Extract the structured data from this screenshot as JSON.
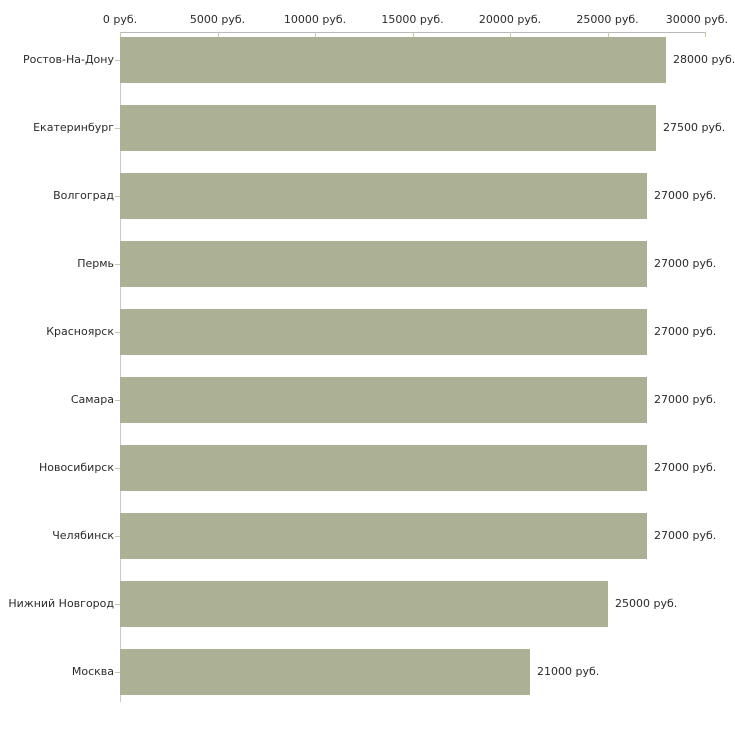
{
  "chart_data": {
    "type": "bar",
    "orientation": "horizontal",
    "title": "",
    "categories": [
      "Ростов-На-Дону",
      "Екатеринбург",
      "Волгоград",
      "Пермь",
      "Красноярск",
      "Самара",
      "Новосибирск",
      "Челябинск",
      "Нижний Новгород",
      "Москва"
    ],
    "values": [
      28000,
      27500,
      27000,
      27000,
      27000,
      27000,
      27000,
      27000,
      25000,
      21000
    ],
    "value_labels": [
      "28000 руб.",
      "27500 руб.",
      "27000 руб.",
      "27000 руб.",
      "27000 руб.",
      "27000 руб.",
      "27000 руб.",
      "27000 руб.",
      "25000 руб.",
      "21000 руб."
    ],
    "unit": "руб.",
    "x_axis": {
      "position": "top",
      "range": [
        0,
        30000
      ],
      "ticks": [
        0,
        5000,
        10000,
        15000,
        20000,
        25000,
        30000
      ],
      "tick_labels": [
        "0 руб.",
        "5000 руб.",
        "10000 руб.",
        "15000 руб.",
        "20000 руб.",
        "25000 руб.",
        "30000 руб."
      ]
    },
    "grid": false,
    "legend": false,
    "colors": {
      "bar_fill": "#acb195",
      "axis_line": "#b9b9b9",
      "category_axis_line": "#c8c8cf",
      "tick_mark": "#c8c8aa",
      "text": "#2b2b2b",
      "background": "#ffffff"
    }
  }
}
